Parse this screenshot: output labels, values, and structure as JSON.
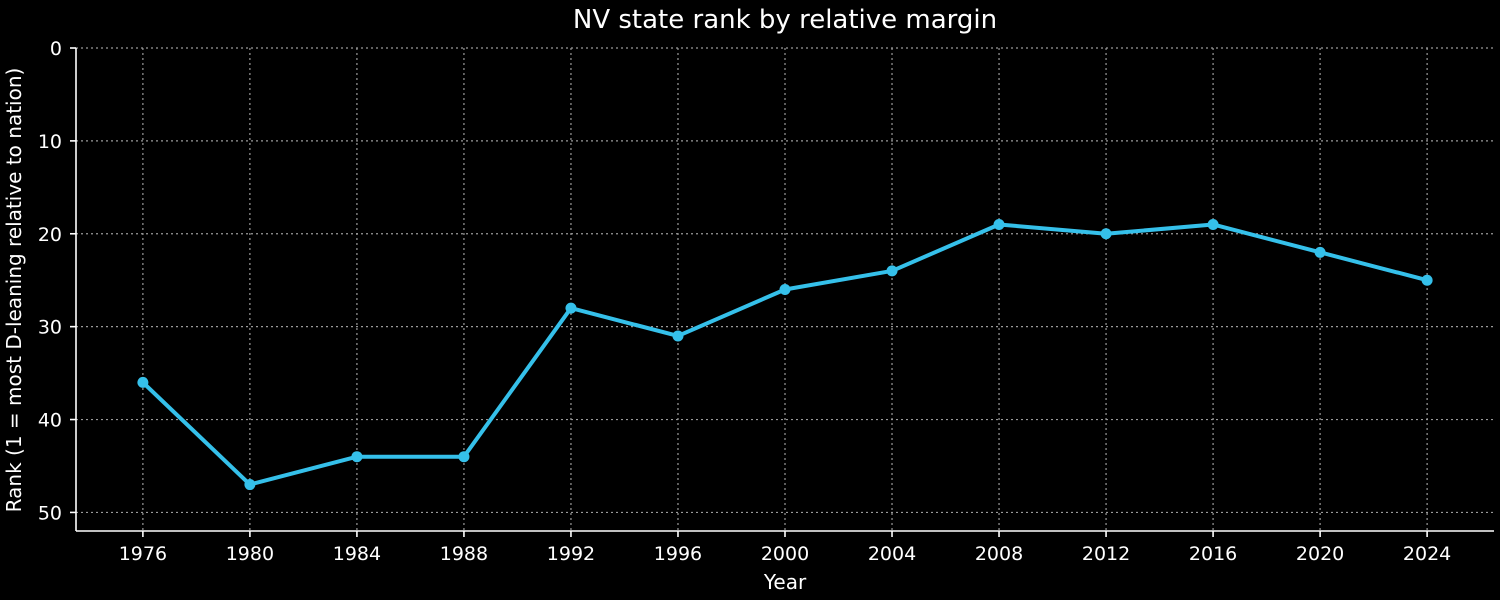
{
  "chart_data": {
    "type": "line",
    "title": "NV state rank by relative margin",
    "xlabel": "Year",
    "ylabel": "Rank (1 = most D-leaning relative to nation)",
    "x": [
      1976,
      1980,
      1984,
      1988,
      1992,
      1996,
      2000,
      2004,
      2008,
      2012,
      2016,
      2020,
      2024
    ],
    "series": [
      {
        "values": [
          36,
          47,
          44,
          44,
          28,
          31,
          26,
          24,
          19,
          20,
          19,
          22,
          25
        ],
        "color": "#35c0ea"
      }
    ],
    "xlim": [
      1973.5,
      2026.5
    ],
    "ylim": [
      52,
      0
    ],
    "y_inverted": true,
    "x_ticks": [
      "1976",
      "1980",
      "1984",
      "1988",
      "1992",
      "1996",
      "2000",
      "2004",
      "2008",
      "2012",
      "2016",
      "2020",
      "2024"
    ],
    "y_ticks": [
      "0",
      "10",
      "20",
      "30",
      "40",
      "50"
    ],
    "grid": true,
    "legend": false,
    "background": "#000000",
    "grid_color": "#9a9a9a",
    "text_color": "#ffffff"
  }
}
